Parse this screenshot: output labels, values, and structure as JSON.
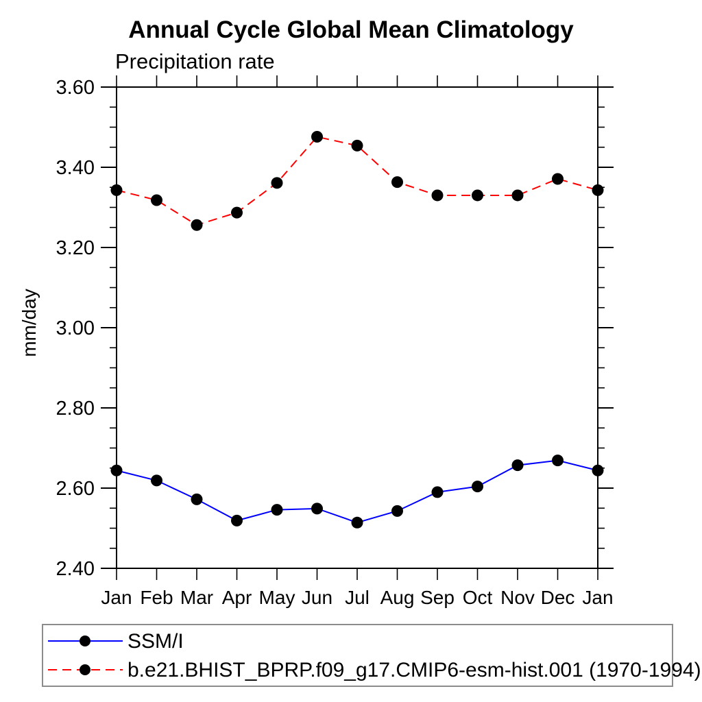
{
  "chart_data": {
    "type": "line",
    "title": "Annual Cycle Global Mean Climatology",
    "subtitle": "Precipitation rate",
    "ylabel": "mm/day",
    "xlabel": "",
    "categories": [
      "Jan",
      "Feb",
      "Mar",
      "Apr",
      "May",
      "Jun",
      "Jul",
      "Aug",
      "Sep",
      "Oct",
      "Nov",
      "Dec",
      "Jan"
    ],
    "y_tick_labels": [
      "3.60",
      "3.40",
      "3.20",
      "3.00",
      "2.80",
      "2.60",
      "2.40"
    ],
    "ylim": [
      2.4,
      3.6
    ],
    "y_major_step": 0.2,
    "y_minor_step": 0.05,
    "grid": false,
    "legend_position": "bottom-left-box",
    "series": [
      {
        "name": "SSM/I",
        "color": "#0000ff",
        "line_style": "solid",
        "marker": "filled-circle",
        "marker_color": "#000000",
        "values": [
          2.644,
          2.619,
          2.572,
          2.519,
          2.546,
          2.549,
          2.514,
          2.543,
          2.59,
          2.604,
          2.657,
          2.669,
          2.644
        ]
      },
      {
        "name": "b.e21.BHIST_BPRP.f09_g17.CMIP6-esm-hist.001 (1970-1994)",
        "color": "#ff0000",
        "line_style": "dashed",
        "marker": "filled-circle",
        "marker_color": "#000000",
        "values": [
          3.343,
          3.318,
          3.256,
          3.287,
          3.361,
          3.476,
          3.454,
          3.363,
          3.33,
          3.33,
          3.33,
          3.371,
          3.343
        ]
      }
    ]
  },
  "colors": {
    "axis": "#000000",
    "legend_border": "#8c8c8c",
    "background": "#ffffff"
  }
}
